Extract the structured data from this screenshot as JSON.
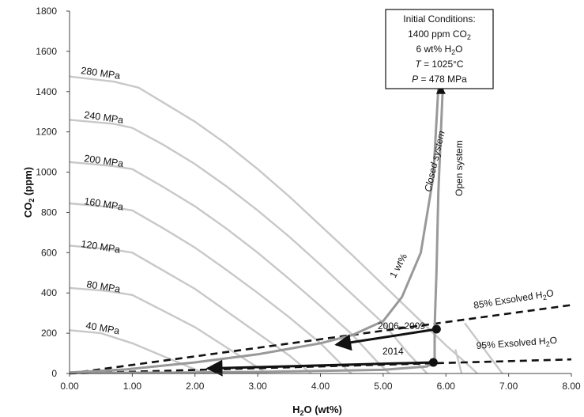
{
  "chart_data": {
    "type": "line",
    "xlabel": "H2O (wt%)",
    "ylabel": "CO2 (ppm)",
    "xlim": [
      0,
      8
    ],
    "ylim": [
      0,
      1800
    ],
    "x_ticks": [
      "0.00",
      "1.00",
      "2.00",
      "3.00",
      "4.00",
      "5.00",
      "6.00",
      "7.00",
      "8.00"
    ],
    "y_ticks": [
      "0",
      "200",
      "400",
      "600",
      "800",
      "1000",
      "1200",
      "1400",
      "1600",
      "1800"
    ],
    "grid": false,
    "isobar_color": "#c8c8c8",
    "isobars": [
      {
        "name": "40 MPa",
        "points": [
          [
            0,
            215
          ],
          [
            0.5,
            200
          ],
          [
            1,
            150
          ],
          [
            1.5,
            85
          ],
          [
            2,
            20
          ],
          [
            2.15,
            0
          ]
        ]
      },
      {
        "name": "80 MPa",
        "points": [
          [
            0,
            425
          ],
          [
            0.6,
            410
          ],
          [
            1,
            390
          ],
          [
            1.5,
            310
          ],
          [
            2,
            230
          ],
          [
            2.5,
            130
          ],
          [
            3,
            30
          ],
          [
            3.15,
            0
          ]
        ]
      },
      {
        "name": "120 MPa",
        "points": [
          [
            0,
            635
          ],
          [
            0.7,
            615
          ],
          [
            1,
            600
          ],
          [
            1.5,
            510
          ],
          [
            2,
            420
          ],
          [
            2.5,
            310
          ],
          [
            3,
            200
          ],
          [
            3.5,
            90
          ],
          [
            3.85,
            0
          ]
        ]
      },
      {
        "name": "160 MPa",
        "points": [
          [
            0,
            845
          ],
          [
            0.7,
            825
          ],
          [
            1,
            810
          ],
          [
            1.5,
            720
          ],
          [
            2,
            625
          ],
          [
            2.5,
            515
          ],
          [
            3,
            400
          ],
          [
            3.5,
            280
          ],
          [
            4,
            150
          ],
          [
            4.45,
            10
          ],
          [
            4.5,
            0
          ]
        ]
      },
      {
        "name": "200 MPa",
        "points": [
          [
            0,
            1050
          ],
          [
            0.7,
            1030
          ],
          [
            1,
            1015
          ],
          [
            1.5,
            925
          ],
          [
            2,
            830
          ],
          [
            2.5,
            720
          ],
          [
            3,
            600
          ],
          [
            3.5,
            470
          ],
          [
            4,
            335
          ],
          [
            4.5,
            195
          ],
          [
            4.9,
            60
          ],
          [
            5.1,
            0
          ]
        ]
      },
      {
        "name": "240 MPa",
        "points": [
          [
            0,
            1260
          ],
          [
            0.7,
            1240
          ],
          [
            1,
            1220
          ],
          [
            1.5,
            1135
          ],
          [
            2,
            1040
          ],
          [
            2.5,
            930
          ],
          [
            3,
            810
          ],
          [
            3.5,
            680
          ],
          [
            4,
            540
          ],
          [
            4.5,
            395
          ],
          [
            5,
            250
          ],
          [
            5.4,
            100
          ],
          [
            5.7,
            0
          ]
        ]
      },
      {
        "name": "280 MPa",
        "points": [
          [
            0,
            1475
          ],
          [
            0.7,
            1450
          ],
          [
            1.1,
            1420
          ],
          [
            1.5,
            1345
          ],
          [
            2,
            1250
          ],
          [
            2.5,
            1140
          ],
          [
            3,
            1015
          ],
          [
            3.5,
            880
          ],
          [
            4,
            735
          ],
          [
            4.5,
            590
          ],
          [
            5,
            440
          ],
          [
            5.5,
            290
          ],
          [
            6,
            140
          ],
          [
            6.4,
            30
          ],
          [
            6.5,
            0
          ]
        ]
      },
      {
        "name": "",
        "points": [
          [
            6.25,
            0
          ],
          [
            6.15,
            120
          ]
        ]
      },
      {
        "name": "",
        "points": [
          [
            6.9,
            0
          ],
          [
            6.3,
            250
          ]
        ]
      }
    ],
    "isobar_labels": [
      "280 MPa",
      "240 MPa",
      "200 MPa",
      "160 MPa",
      "120 MPa",
      "80 MPa",
      "40 MPa"
    ],
    "exsolved_lines": [
      {
        "name": "85% Exsolved H2O",
        "points": [
          [
            0,
            0
          ],
          [
            8,
            340
          ]
        ]
      },
      {
        "name": "95% Exsolved H2O",
        "points": [
          [
            0,
            0
          ],
          [
            8,
            70
          ]
        ]
      }
    ],
    "degassing_paths": [
      {
        "name": "Closed system",
        "points": [
          [
            5.88,
            1420
          ],
          [
            5.8,
            980
          ],
          [
            5.6,
            600
          ],
          [
            5.3,
            380
          ],
          [
            5,
            260
          ],
          [
            4.5,
            190
          ],
          [
            4,
            150
          ],
          [
            3,
            95
          ],
          [
            2,
            55
          ],
          [
            0.9,
            20
          ],
          [
            0,
            5
          ]
        ]
      },
      {
        "name": "Open system",
        "points": [
          [
            5.95,
            1420
          ],
          [
            5.88,
            900
          ],
          [
            5.85,
            500
          ],
          [
            5.82,
            230
          ],
          [
            5.82,
            55
          ],
          [
            5.7,
            35
          ],
          [
            5,
            18
          ],
          [
            3,
            8
          ],
          [
            1.5,
            4
          ],
          [
            0,
            3
          ]
        ]
      }
    ],
    "path_color": "#999999",
    "path_labels": {
      "closed": "Closed system",
      "open": "Open system",
      "one_wt": "1 wt%"
    },
    "eruption_points": [
      {
        "name": "2006–2009",
        "x": 5.85,
        "y": 220
      },
      {
        "name": "2014",
        "x": 5.8,
        "y": 55
      }
    ],
    "arrows": [
      {
        "from": [
          5.85,
          220
        ],
        "to": [
          4.25,
          143
        ]
      },
      {
        "from": [
          5.8,
          55
        ],
        "to": [
          2.2,
          25
        ]
      }
    ],
    "initial_conditions": {
      "title": "Initial Conditions:",
      "co2": "1400 ppm CO",
      "co2_sub": "2",
      "h2o": "6 wt% H",
      "h2o_sub": "2",
      "h2o_tail": "O",
      "t_label": "T",
      "t_value": " = 1025°C",
      "p_label": "P",
      "p_value": " = 478 MPa",
      "point": [
        5.92,
        1420
      ]
    },
    "exsolved_labels": {
      "e85_main": "85% Exsolved H",
      "e95_main": "95% Exsolved H",
      "sub": "2",
      "tail": "O"
    },
    "axis_text": {
      "x_main": "H",
      "x_sub": "2",
      "x_tail": "O (wt%)",
      "y_main": "CO",
      "y_sub": "2",
      "y_tail": " (ppm)"
    }
  }
}
